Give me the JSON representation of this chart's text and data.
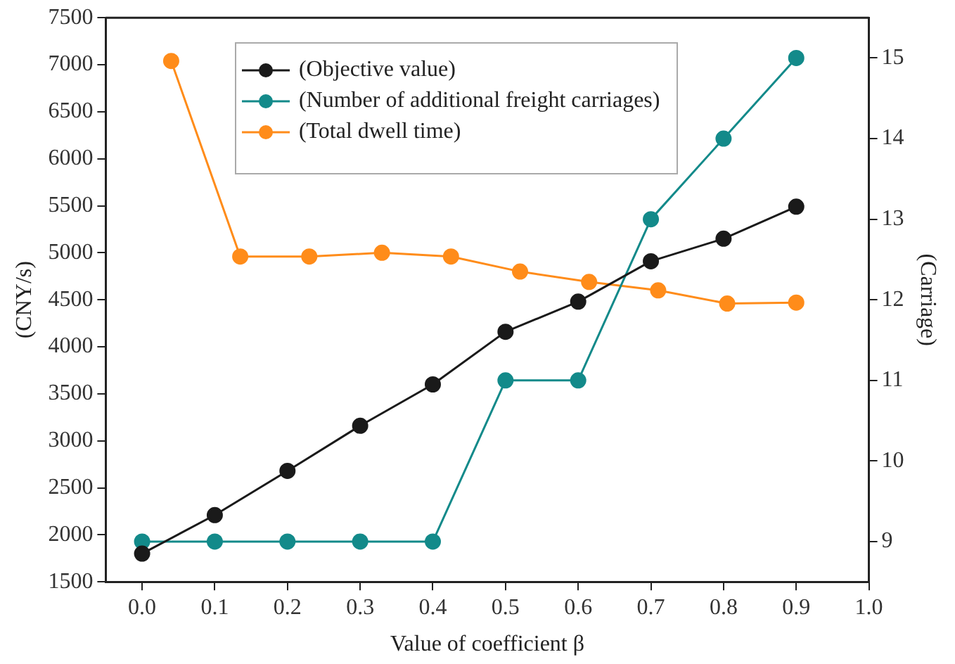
{
  "chart_data": {
    "type": "line",
    "xlabel": "Value of coefficient β",
    "ylabel": "(CNY/s)",
    "y2label": "(Carriage)",
    "x": [
      0,
      0.1,
      0.2,
      0.3,
      0.4,
      0.5,
      0.6,
      0.7,
      0.8,
      0.9
    ],
    "series": [
      {
        "name": "(Objective value)",
        "color": "#1a1a1a",
        "values": [
          1800,
          2210,
          2680,
          3160,
          3600,
          4160,
          4480,
          4910,
          5150,
          5490
        ]
      },
      {
        "name": "(Number of additional freight carriages)",
        "color": "#138a8a",
        "axis": "y2",
        "values": [
          9,
          9,
          9,
          9,
          9,
          11,
          11,
          13,
          14,
          15
        ]
      },
      {
        "name": "(Total dwell time)",
        "color": "#ff8c1a",
        "x": [
          0.04,
          0.135,
          0.23,
          0.33,
          0.425,
          0.52,
          0.615,
          0.71,
          0.805,
          0.9
        ],
        "values": [
          7040,
          4960,
          4960,
          5000,
          4960,
          4800,
          4690,
          4600,
          4460,
          4470
        ]
      }
    ],
    "xlim": [
      -0.05,
      1.0
    ],
    "xticks": [
      {
        "value": 0,
        "label": "0.0"
      },
      {
        "value": 0.1,
        "label": "0.1"
      },
      {
        "value": 0.2,
        "label": "0.2"
      },
      {
        "value": 0.3,
        "label": "0.3"
      },
      {
        "value": 0.4,
        "label": "0.4"
      },
      {
        "value": 0.5,
        "label": "0.5"
      },
      {
        "value": 0.6,
        "label": "0.6"
      },
      {
        "value": 0.7,
        "label": "0.7"
      },
      {
        "value": 0.8,
        "label": "0.8"
      },
      {
        "value": 0.9,
        "label": "0.9"
      },
      {
        "value": 1.0,
        "label": "1.0"
      }
    ],
    "ylim": [
      1500,
      7500
    ],
    "yticks": [
      1500,
      2000,
      2500,
      3000,
      3500,
      4000,
      4500,
      5000,
      5500,
      6000,
      6500,
      7000,
      7500
    ],
    "y2lim": [
      8.5,
      15.5
    ],
    "y2ticks": [
      9,
      10,
      11,
      12,
      13,
      14,
      15
    ],
    "grid": false,
    "legend": "top",
    "marker": "circle",
    "line_style": "solid"
  }
}
